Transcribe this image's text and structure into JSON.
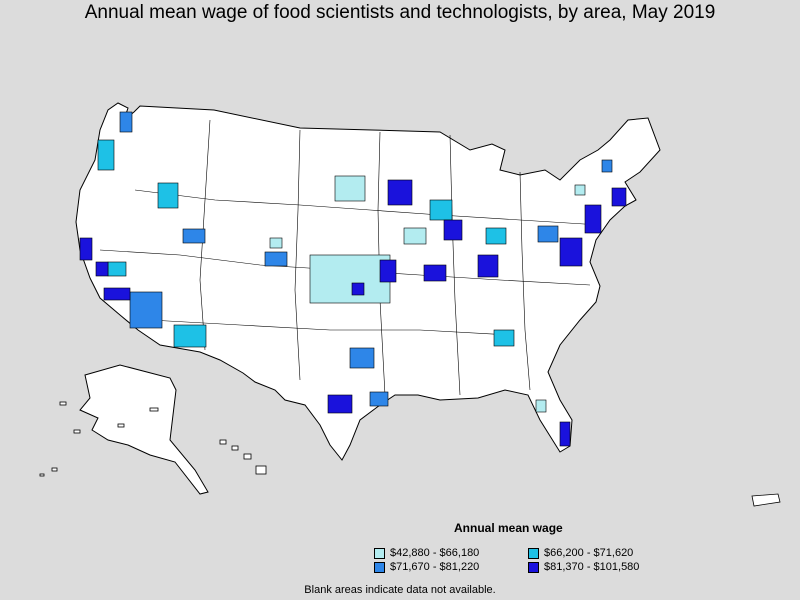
{
  "title": "Annual mean wage of food scientists and technologists, by area, May 2019",
  "legend": {
    "title": "Annual mean wage",
    "items": [
      {
        "label": "$42,880 - $66,180",
        "color": "#b3ecf0"
      },
      {
        "label": "$66,200 - $71,620",
        "color": "#1ec1e6"
      },
      {
        "label": "$71,670 - $81,220",
        "color": "#2e86e8"
      },
      {
        "label": "$81,370 - $101,580",
        "color": "#1a12dc"
      }
    ]
  },
  "footnote": "Blank areas indicate data not available.",
  "colors": {
    "background": "#dcdcdc",
    "land": "#ffffff",
    "border": "#000000"
  }
}
